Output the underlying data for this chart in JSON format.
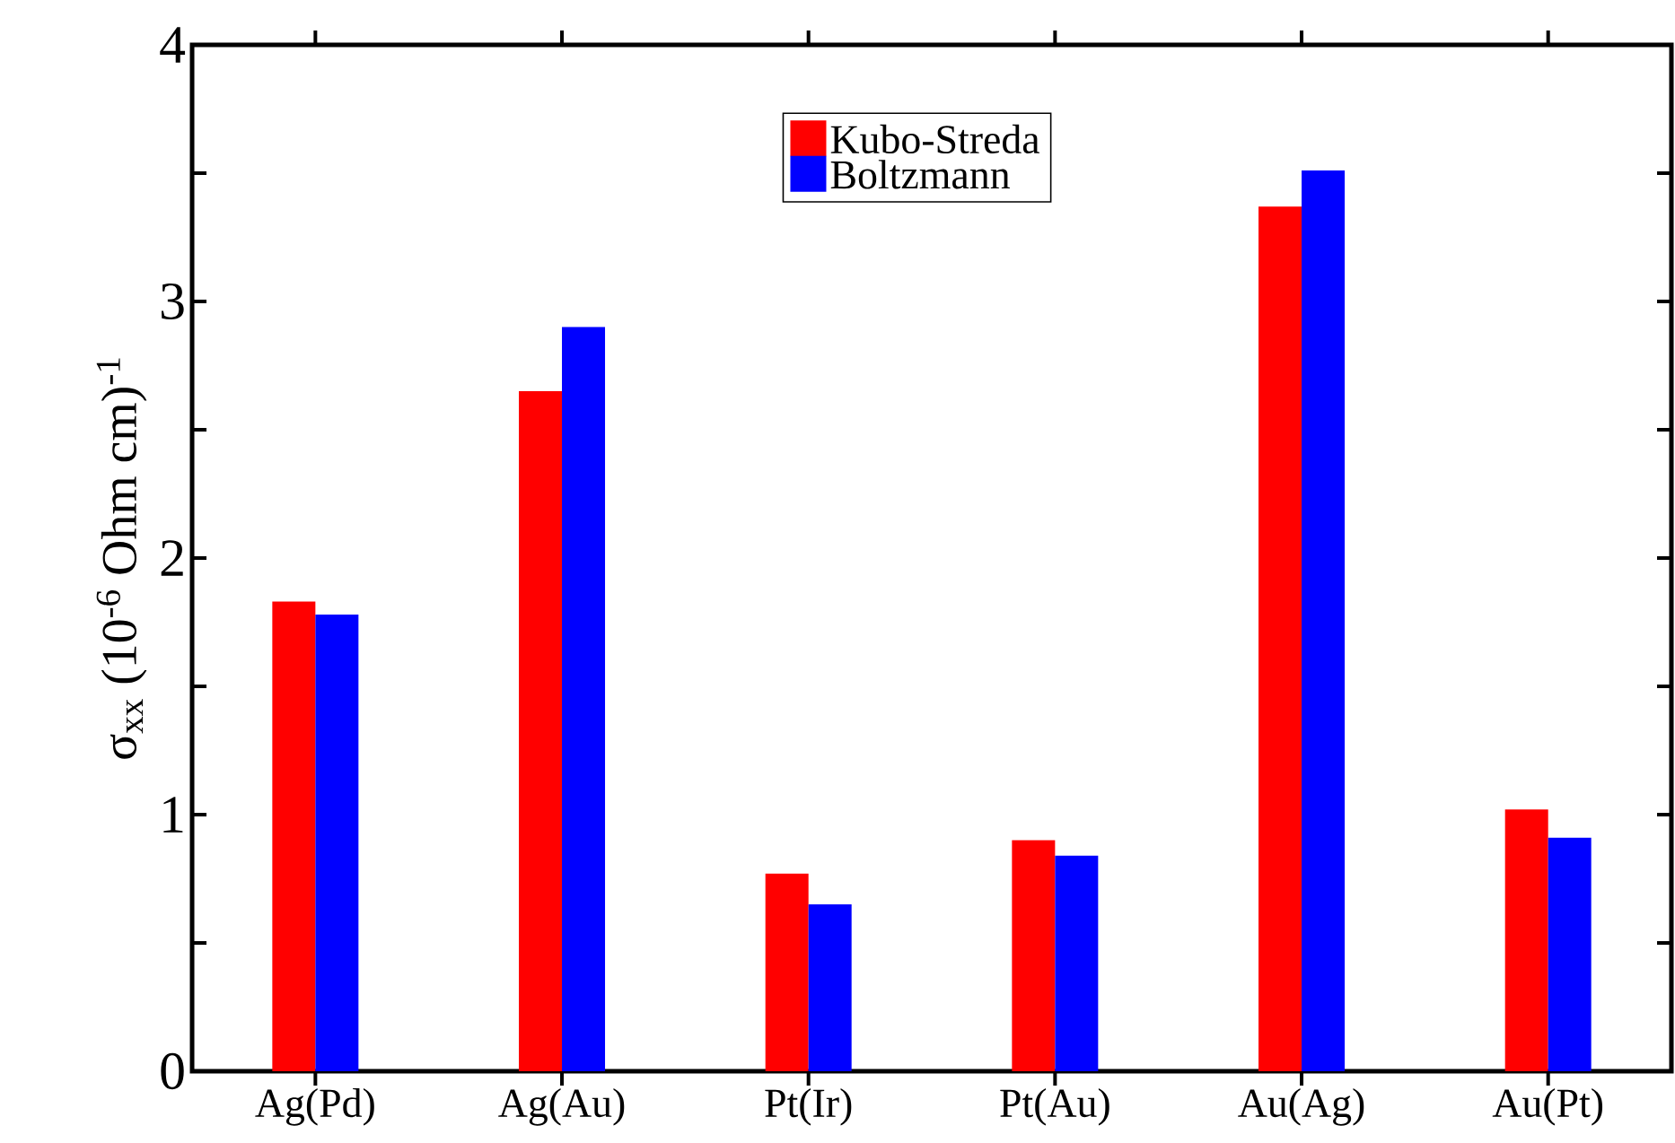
{
  "chart_data": {
    "type": "bar",
    "ylabel": "σ$_{xx}$ (10$^{-6}$ Ohm cm)$^{-1}$",
    "categories": [
      "Ag(Pd)",
      "Ag(Au)",
      "Pt(Ir)",
      "Pt(Au)",
      "Au(Ag)",
      "Au(Pt)"
    ],
    "series": [
      {
        "name": "Kubo-Streda",
        "color": "#ff0000",
        "values": [
          1.83,
          2.65,
          0.77,
          0.9,
          3.37,
          1.02
        ]
      },
      {
        "name": "Boltzmann",
        "color": "#0000ff",
        "values": [
          1.78,
          2.9,
          0.65,
          0.84,
          3.51,
          0.91
        ]
      }
    ],
    "ylim": [
      0,
      4
    ],
    "yticks": [
      0,
      {
        "value": 0.5,
        "label": null
      },
      1,
      {
        "value": 1.5,
        "label": null
      },
      2,
      {
        "value": 2.5,
        "label": null
      },
      3,
      {
        "value": 3.5,
        "label": null
      },
      4
    ],
    "legend": "top",
    "grid": false
  }
}
